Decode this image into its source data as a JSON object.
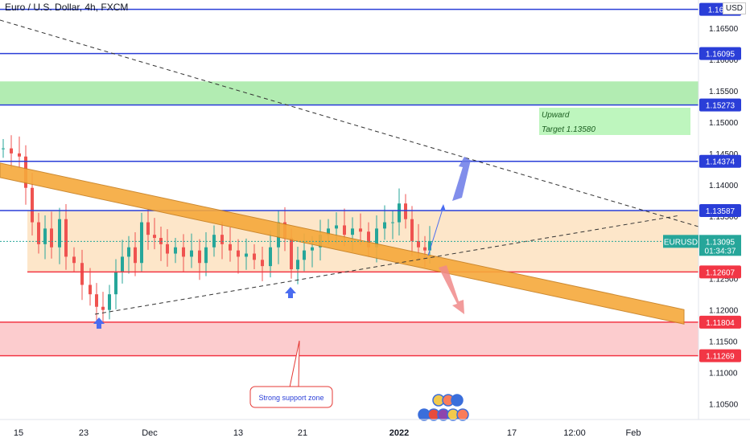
{
  "title": "Euro / U.S. Dollar, 4h, FXCM",
  "currency": "USD",
  "chart_data": {
    "type": "candlestick",
    "symbol": "EURUSD",
    "timeframe": "4h",
    "ylim": [
      1.1025,
      1.1695
    ],
    "y_ticks": [
      "1.16500",
      "1.16000",
      "1.15500",
      "1.15000",
      "1.14500",
      "1.14000",
      "1.13500",
      "1.13000",
      "1.12500",
      "1.12000",
      "1.11500",
      "1.11000",
      "1.10500"
    ],
    "x_ticks": [
      "15",
      "23",
      "Dec",
      "13",
      "21",
      "2022",
      "17",
      "12:00",
      "Feb"
    ],
    "horizontal_levels": [
      {
        "label": "1.1680",
        "value": 1.168,
        "color": "#2a3ed8"
      },
      {
        "label": "1.16095",
        "value": 1.16095,
        "color": "#2a3ed8"
      },
      {
        "label": "1.15273",
        "value": 1.15273,
        "color": "#2a3ed8"
      },
      {
        "label": "1.14374",
        "value": 1.14374,
        "color": "#2a3ed8"
      },
      {
        "label": "1.13587",
        "value": 1.13587,
        "color": "#2a3ed8"
      },
      {
        "label": "1.12607",
        "value": 1.12607,
        "color": "#f23645"
      },
      {
        "label": "1.11804",
        "value": 1.11804,
        "color": "#f23645"
      },
      {
        "label": "1.11269",
        "value": 1.11269,
        "color": "#f23645"
      }
    ],
    "last_price": {
      "symbol": "EURUSD",
      "value": "1.13095",
      "countdown": "01:34:37",
      "color": "#26a69a"
    },
    "target_box": {
      "line1": "Upward",
      "line2": "Target 1.13580"
    },
    "callout": "Strong support zone",
    "zones": [
      {
        "name": "green-zone",
        "from": 1.1527,
        "to": 1.1565,
        "color": "#a5e9a5"
      },
      {
        "name": "orange-zone",
        "from": 1.1261,
        "to": 1.1359,
        "color": "#fde2c0"
      },
      {
        "name": "red-zone",
        "from": 1.1127,
        "to": 1.118,
        "color": "#fbc3c6"
      }
    ],
    "colors": {
      "up": "#26a69a",
      "down": "#ef5350",
      "trendband": "#f6a93b",
      "arrow_blue": "#6b7ae8",
      "arrow_red": "#f08a8a"
    }
  }
}
